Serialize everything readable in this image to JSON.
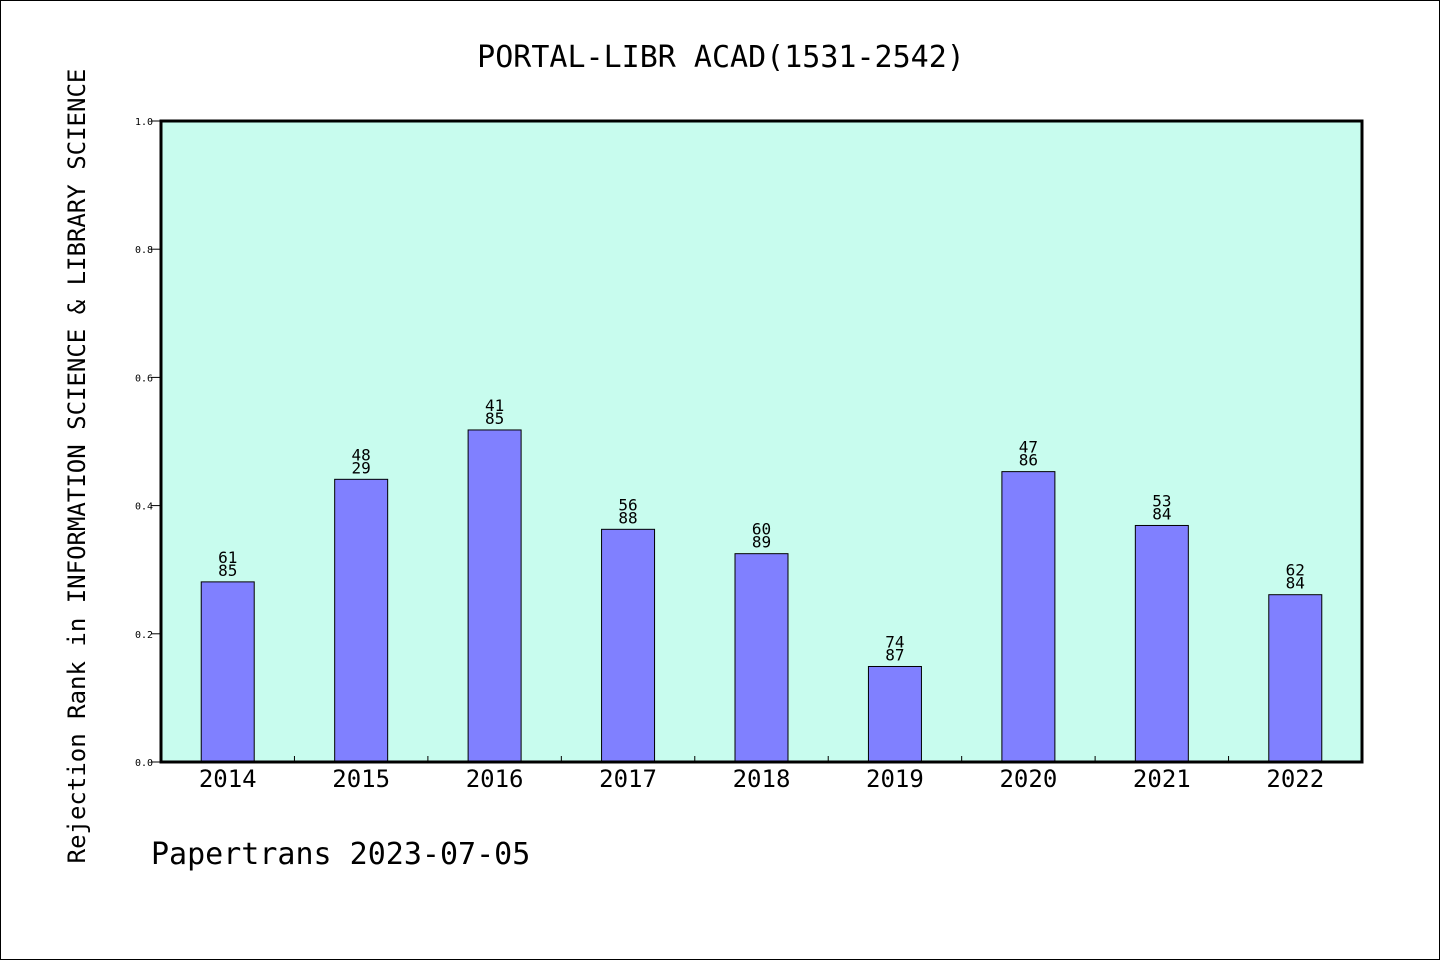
{
  "chart_data": {
    "type": "bar",
    "title": "PORTAL-LIBR ACAD(1531-2542)",
    "ylabel": "Rejection Rank in INFORMATION SCIENCE & LIBRARY SCIENCE",
    "xlabel": "",
    "ylim": [
      0,
      1.0
    ],
    "yticks": [
      "0.0",
      "0.2",
      "0.4",
      "0.6",
      "0.8",
      "1.0"
    ],
    "ytick_values": [
      0,
      0.2,
      0.4,
      0.6,
      0.8,
      1.0
    ],
    "categories": [
      "2014",
      "2015",
      "2016",
      "2017",
      "2018",
      "2019",
      "2020",
      "2021",
      "2022"
    ],
    "values": [
      0.281,
      0.441,
      0.518,
      0.363,
      0.325,
      0.149,
      0.453,
      0.369,
      0.261
    ],
    "label_top": [
      "61",
      "48",
      "41",
      "56",
      "60",
      "74",
      "47",
      "53",
      "62"
    ],
    "label_bottom": [
      "85",
      "29",
      "85",
      "88",
      "89",
      "87",
      "86",
      "84",
      "84"
    ],
    "colors": {
      "plot_bg": "#c8fcee",
      "bar": "#8080ff",
      "bar_edge": "#000000"
    },
    "grid": false,
    "legend": "none"
  },
  "footer": "Papertrans 2023-07-05"
}
